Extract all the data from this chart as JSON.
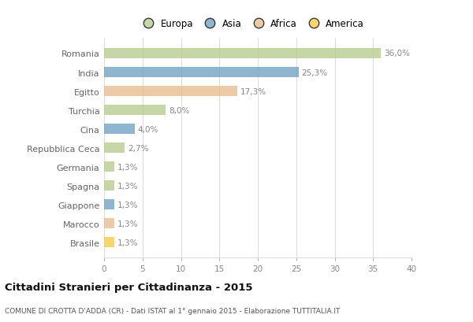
{
  "countries": [
    "Romania",
    "India",
    "Egitto",
    "Turchia",
    "Cina",
    "Repubblica Ceca",
    "Germania",
    "Spagna",
    "Giappone",
    "Marocco",
    "Brasile"
  ],
  "values": [
    36.0,
    25.3,
    17.3,
    8.0,
    4.0,
    2.7,
    1.3,
    1.3,
    1.3,
    1.3,
    1.3
  ],
  "labels": [
    "36,0%",
    "25,3%",
    "17,3%",
    "8,0%",
    "4,0%",
    "2,7%",
    "1,3%",
    "1,3%",
    "1,3%",
    "1,3%",
    "1,3%"
  ],
  "colors": [
    "#b5c98a",
    "#6b9dc2",
    "#e8b98a",
    "#b5c98a",
    "#6b9dc2",
    "#b5c98a",
    "#b5c98a",
    "#b5c98a",
    "#6b9dc2",
    "#e8b98a",
    "#f5c842"
  ],
  "legend_labels": [
    "Europa",
    "Asia",
    "Africa",
    "America"
  ],
  "legend_colors": [
    "#b5c98a",
    "#6b9dc2",
    "#e8b98a",
    "#f5c842"
  ],
  "title": "Cittadini Stranieri per Cittadinanza - 2015",
  "subtitle": "COMUNE DI CROTTA D'ADDA (CR) - Dati ISTAT al 1° gennaio 2015 - Elaborazione TUTTITALIA.IT",
  "xlim": [
    0,
    40
  ],
  "xticks": [
    0,
    5,
    10,
    15,
    20,
    25,
    30,
    35,
    40
  ],
  "bg_color": "#ffffff",
  "plot_bg_color": "#ffffff",
  "grid_color": "#dddddd",
  "label_color": "#888888",
  "ylabel_color": "#666666",
  "bar_height": 0.55,
  "bar_alpha": 0.75
}
